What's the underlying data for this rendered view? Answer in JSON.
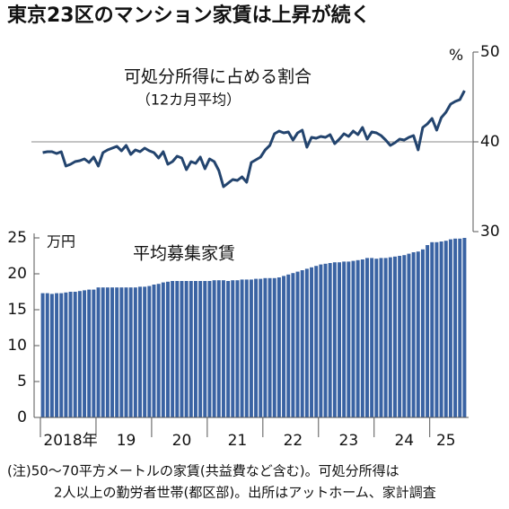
{
  "title": "東京23区のマンション家賃は上昇が続く",
  "chart_data": [
    {
      "type": "line",
      "title": "可処分所得に占める割合",
      "subtitle": "（12カ月平均）",
      "unit": "%",
      "y2lim": [
        30,
        50
      ],
      "y2ticks": [
        30,
        40,
        50
      ],
      "grid": true,
      "series": [
        {
          "color": "#23446e",
          "axis": "y2",
          "values": [
            38.8,
            38.9,
            38.9,
            38.7,
            38.9,
            37.3,
            37.5,
            37.8,
            37.9,
            38.1,
            37.7,
            38.3,
            37.3,
            38.8,
            39.1,
            39.3,
            39.5,
            39.0,
            39.6,
            38.6,
            39.1,
            38.9,
            39.3,
            39.0,
            38.8,
            38.2,
            38.9,
            37.5,
            37.8,
            38.4,
            38.2,
            36.9,
            37.8,
            37.6,
            38.3,
            37.0,
            38.1,
            37.8,
            36.8,
            35.0,
            35.4,
            35.8,
            35.7,
            36.1,
            35.5,
            37.7,
            38.0,
            38.3,
            39.1,
            39.6,
            40.9,
            41.2,
            41.0,
            41.1,
            40.2,
            41.0,
            41.3,
            39.4,
            40.5,
            40.4,
            40.6,
            40.5,
            40.8,
            39.8,
            40.3,
            40.9,
            40.6,
            41.2,
            40.8,
            41.6,
            40.3,
            41.1,
            41.0,
            40.7,
            40.2,
            39.6,
            39.9,
            40.3,
            40.2,
            40.5,
            40.7,
            39.1,
            41.6,
            42.0,
            42.6,
            41.3,
            42.7,
            43.3,
            44.2,
            44.5,
            44.7,
            45.7
          ]
        }
      ]
    },
    {
      "type": "bar",
      "title": "平均募集家賃",
      "unit": "万円",
      "color": "#3a63a3",
      "ylim": [
        0,
        25
      ],
      "yticks": [
        0,
        5,
        10,
        15,
        20,
        25
      ],
      "categories": [
        null,
        null,
        null,
        null,
        null,
        null,
        "2018年",
        null,
        null,
        null,
        null,
        null,
        null,
        null,
        null,
        null,
        null,
        null,
        "19",
        null,
        null,
        null,
        null,
        null,
        null,
        null,
        null,
        null,
        null,
        null,
        "20",
        null,
        null,
        null,
        null,
        null,
        null,
        null,
        null,
        null,
        null,
        null,
        "21",
        null,
        null,
        null,
        null,
        null,
        null,
        null,
        null,
        null,
        null,
        null,
        "22",
        null,
        null,
        null,
        null,
        null,
        null,
        null,
        null,
        null,
        null,
        null,
        "23",
        null,
        null,
        null,
        null,
        null,
        null,
        null,
        null,
        null,
        null,
        null,
        "24",
        null,
        null,
        null,
        null,
        null,
        null,
        null,
        null,
        "25",
        null,
        null,
        null,
        null
      ],
      "values": [
        17.3,
        17.3,
        17.2,
        17.3,
        17.3,
        17.4,
        17.5,
        17.5,
        17.6,
        17.7,
        17.8,
        17.8,
        18.1,
        18.1,
        18.1,
        18.1,
        18.1,
        18.1,
        18.1,
        18.1,
        18.1,
        18.2,
        18.2,
        18.3,
        18.5,
        18.6,
        18.8,
        18.9,
        19.0,
        19.0,
        19.0,
        19.0,
        19.0,
        19.0,
        19.0,
        19.0,
        19.0,
        19.1,
        19.1,
        19.1,
        19.0,
        19.1,
        19.1,
        19.2,
        19.2,
        19.2,
        19.3,
        19.3,
        19.4,
        19.4,
        19.4,
        19.5,
        19.7,
        19.9,
        20.1,
        20.3,
        20.5,
        20.7,
        20.9,
        21.1,
        21.3,
        21.4,
        21.5,
        21.6,
        21.6,
        21.7,
        21.7,
        21.8,
        21.9,
        22.0,
        22.2,
        22.2,
        22.1,
        22.2,
        22.2,
        22.3,
        22.4,
        22.5,
        22.6,
        22.8,
        23.0,
        23.1,
        23.4,
        24.0,
        24.4,
        24.4,
        24.5,
        24.6,
        24.8,
        24.9,
        24.9,
        25.0
      ]
    }
  ],
  "notes": [
    "(注)50～70平方メートルの家賃(共益費など含む)。可処分所得は",
    "2人以上の勤労者世帯(都区部)。出所はアットホーム、家計調査"
  ]
}
